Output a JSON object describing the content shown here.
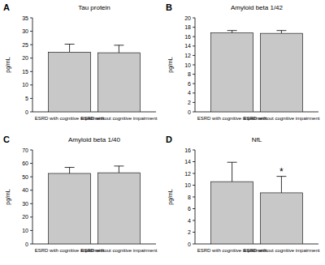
{
  "chart_data": [
    {
      "type": "bar",
      "panel_label": "A",
      "title": "Tau protein",
      "y_label": "pg/mL",
      "categories": [
        "ESRD with cognitive impairment",
        "ESRD without cognitive impairment"
      ],
      "values": [
        22.2,
        22.0
      ],
      "errors": [
        3.0,
        2.8
      ],
      "color": "#c8c8c8",
      "ylim": [
        0,
        35
      ],
      "yticks": [
        0,
        5,
        10,
        15,
        20,
        25,
        30,
        35
      ]
    },
    {
      "type": "bar",
      "panel_label": "B",
      "title": "Amyloid beta 1/42",
      "y_label": "pg/mL",
      "categories": [
        "ESRD with cognitive impairment",
        "ESRD without cognitive impairment"
      ],
      "values": [
        16.8,
        16.7
      ],
      "errors": [
        0.5,
        0.6
      ],
      "color": "#c8c8c8",
      "ylim": [
        0,
        20
      ],
      "yticks": [
        0,
        2,
        4,
        6,
        8,
        10,
        12,
        14,
        16,
        18,
        20
      ]
    },
    {
      "type": "bar",
      "panel_label": "C",
      "title": "Amyloid beta 1/40",
      "y_label": "pg/mL",
      "categories": [
        "ESRD with cognitive impairment",
        "ESRD without cognitive impairment"
      ],
      "values": [
        52.5,
        53.0
      ],
      "errors": [
        4.5,
        5.0
      ],
      "color": "#c8c8c8",
      "ylim": [
        0,
        70
      ],
      "yticks": [
        0,
        10,
        20,
        30,
        40,
        50,
        60,
        70
      ]
    },
    {
      "type": "bar",
      "panel_label": "D",
      "title": "NfL",
      "y_label": "pg/mL",
      "categories": [
        "ESRD with cognitive impairment",
        "ESRD without cognitive impairment"
      ],
      "values": [
        10.6,
        8.7
      ],
      "errors": [
        3.3,
        2.8
      ],
      "color": "#c8c8c8",
      "ylim": [
        0,
        16
      ],
      "yticks": [
        0,
        2,
        4,
        6,
        8,
        10,
        12,
        14,
        16
      ],
      "annotations": [
        {
          "text": "*",
          "category": 1
        }
      ]
    }
  ]
}
